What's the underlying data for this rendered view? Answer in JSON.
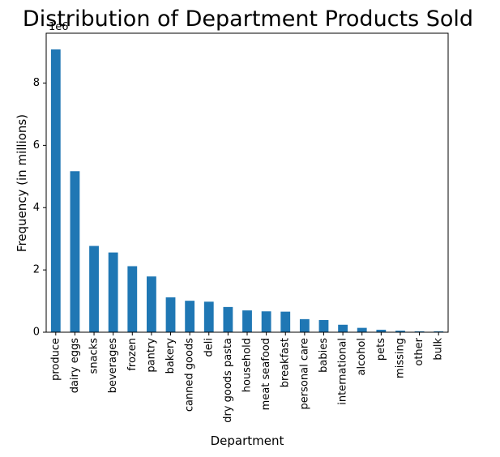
{
  "chart_data": {
    "type": "bar",
    "title": "Distribution of Department Products Sold",
    "xlabel": "Department",
    "ylabel": "Frequency (in millions)",
    "offset_label": "1e6",
    "ylim": [
      0,
      9.6
    ],
    "yticks": [
      "0",
      "2",
      "4",
      "6",
      "8"
    ],
    "ytick_values": [
      0,
      2,
      4,
      6,
      8
    ],
    "bar_color": "#1f77b4",
    "grid": false,
    "categories": [
      "produce",
      "dairy eggs",
      "snacks",
      "beverages",
      "frozen",
      "pantry",
      "bakery",
      "canned goods",
      "deli",
      "dry goods pasta",
      "household",
      "meat seafood",
      "breakfast",
      "personal care",
      "babies",
      "international",
      "alcohol",
      "pets",
      "missing",
      "other",
      "bulk"
    ],
    "values": [
      9.08,
      5.17,
      2.77,
      2.56,
      2.12,
      1.79,
      1.12,
      1.01,
      0.98,
      0.81,
      0.7,
      0.67,
      0.66,
      0.42,
      0.39,
      0.24,
      0.14,
      0.08,
      0.05,
      0.03,
      0.03
    ]
  }
}
